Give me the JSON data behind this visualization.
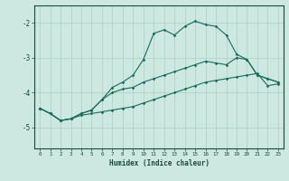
{
  "xlabel": "Humidex (Indice chaleur)",
  "ylabel": "",
  "background_color": "#cce8e0",
  "grid_color": "#aacfc8",
  "line_color": "#1a6b5a",
  "spine_color": "#1a4a3a",
  "xlim": [
    -0.5,
    23.5
  ],
  "ylim": [
    -5.6,
    -1.5
  ],
  "yticks": [
    -5,
    -4,
    -3,
    -2
  ],
  "xticks": [
    0,
    1,
    2,
    3,
    4,
    5,
    6,
    7,
    8,
    9,
    10,
    11,
    12,
    13,
    14,
    15,
    16,
    17,
    18,
    19,
    20,
    21,
    22,
    23
  ],
  "line1_x": [
    0,
    1,
    2,
    3,
    4,
    5,
    6,
    7,
    8,
    9,
    10,
    11,
    12,
    13,
    14,
    15,
    16,
    17,
    18,
    19,
    20,
    21,
    22,
    23
  ],
  "line1_y": [
    -4.45,
    -4.6,
    -4.8,
    -4.75,
    -4.6,
    -4.5,
    -4.2,
    -3.85,
    -3.7,
    -3.5,
    -3.05,
    -2.3,
    -2.2,
    -2.35,
    -2.1,
    -1.95,
    -2.05,
    -2.1,
    -2.35,
    -2.9,
    -3.05,
    -3.5,
    -3.6,
    -3.7
  ],
  "line2_x": [
    0,
    1,
    2,
    3,
    4,
    5,
    6,
    7,
    8,
    9,
    10,
    11,
    12,
    13,
    14,
    15,
    16,
    17,
    18,
    19,
    20,
    21,
    22,
    23
  ],
  "line2_y": [
    -4.45,
    -4.6,
    -4.8,
    -4.75,
    -4.6,
    -4.5,
    -4.2,
    -4.0,
    -3.9,
    -3.85,
    -3.7,
    -3.6,
    -3.5,
    -3.4,
    -3.3,
    -3.2,
    -3.1,
    -3.15,
    -3.2,
    -3.0,
    -3.05,
    -3.5,
    -3.6,
    -3.7
  ],
  "line3_x": [
    0,
    1,
    2,
    3,
    4,
    5,
    6,
    7,
    8,
    9,
    10,
    11,
    12,
    13,
    14,
    15,
    16,
    17,
    18,
    19,
    20,
    21,
    22,
    23
  ],
  "line3_y": [
    -4.45,
    -4.6,
    -4.8,
    -4.75,
    -4.65,
    -4.6,
    -4.55,
    -4.5,
    -4.45,
    -4.4,
    -4.3,
    -4.2,
    -4.1,
    -4.0,
    -3.9,
    -3.8,
    -3.7,
    -3.65,
    -3.6,
    -3.55,
    -3.5,
    -3.45,
    -3.8,
    -3.75
  ]
}
